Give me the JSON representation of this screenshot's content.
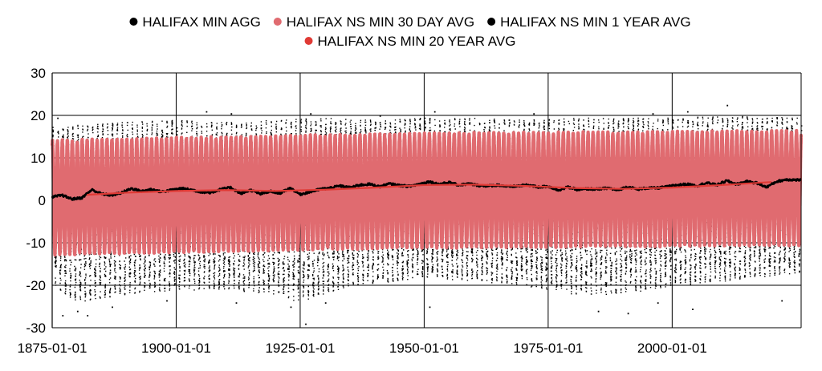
{
  "chart_data": {
    "type": "scatter",
    "title": "",
    "xlabel": "",
    "ylabel": "",
    "x_ticks": [
      "1875-01-01",
      "1900-01-01",
      "1925-01-01",
      "1950-01-01",
      "1975-01-01",
      "2000-01-01"
    ],
    "x_range": [
      "1875-01-01",
      "2025-12-31"
    ],
    "y_ticks": [
      30,
      20,
      10,
      0,
      -10,
      -20,
      -30
    ],
    "ylim": [
      -30,
      30
    ],
    "grid": true,
    "legend_position": "top",
    "series": [
      {
        "name": "HALIFAX MIN AGG",
        "color": "#000000",
        "kind": "daily scatter",
        "upper_envelope": [
          [
            1875,
            17.5
          ],
          [
            1890,
            18.5
          ],
          [
            1900,
            19
          ],
          [
            1910,
            18.5
          ],
          [
            1920,
            19
          ],
          [
            1930,
            19.5
          ],
          [
            1940,
            19
          ],
          [
            1950,
            19.5
          ],
          [
            1960,
            19.5
          ],
          [
            1970,
            19
          ],
          [
            1980,
            19.5
          ],
          [
            1990,
            19.5
          ],
          [
            2000,
            19.5
          ],
          [
            2010,
            20
          ],
          [
            2025,
            19.5
          ]
        ],
        "lower_envelope": [
          [
            1875,
            -20
          ],
          [
            1880,
            -24
          ],
          [
            1890,
            -22
          ],
          [
            1900,
            -21
          ],
          [
            1910,
            -21
          ],
          [
            1920,
            -22
          ],
          [
            1925,
            -24
          ],
          [
            1935,
            -20
          ],
          [
            1945,
            -19
          ],
          [
            1950,
            -18
          ],
          [
            1960,
            -19
          ],
          [
            1970,
            -20
          ],
          [
            1980,
            -22
          ],
          [
            1990,
            -22
          ],
          [
            2000,
            -20
          ],
          [
            2010,
            -19
          ],
          [
            2025,
            -17
          ]
        ],
        "extremes_high": [
          [
            1876,
            19.5
          ],
          [
            1906,
            21
          ],
          [
            1911,
            20.5
          ],
          [
            1927,
            20.5
          ],
          [
            1941,
            20
          ],
          [
            1952,
            21
          ],
          [
            1972,
            20.5
          ],
          [
            1996,
            20.5
          ],
          [
            2003,
            21
          ],
          [
            2011,
            22.5
          ]
        ],
        "extremes_low": [
          [
            1877,
            -27
          ],
          [
            1880,
            -26
          ],
          [
            1882,
            -27
          ],
          [
            1887,
            -25
          ],
          [
            1898,
            -23.5
          ],
          [
            1912,
            -24
          ],
          [
            1923,
            -25
          ],
          [
            1926,
            -29
          ],
          [
            1930,
            -24
          ],
          [
            1951,
            -25
          ],
          [
            1985,
            -26
          ],
          [
            1991,
            -26.5
          ],
          [
            1997,
            -24
          ],
          [
            2004,
            -25.5
          ],
          [
            2022,
            -23.5
          ]
        ]
      },
      {
        "name": "HALIFAX NS  MIN 30 DAY AVG",
        "color": "#E06B70",
        "kind": "seasonal oscillation",
        "summer_peak": 14.5,
        "winter_trough": -11.5
      },
      {
        "name": "HALIFAX NS  MIN 1 YEAR AVG",
        "color": "#000000",
        "x": [
          1875,
          1877,
          1879,
          1881,
          1883,
          1885,
          1887,
          1889,
          1891,
          1893,
          1895,
          1897,
          1899,
          1901,
          1903,
          1905,
          1907,
          1909,
          1911,
          1913,
          1915,
          1917,
          1919,
          1921,
          1923,
          1925,
          1927,
          1929,
          1931,
          1933,
          1935,
          1937,
          1939,
          1941,
          1943,
          1945,
          1947,
          1949,
          1951,
          1953,
          1955,
          1957,
          1959,
          1961,
          1963,
          1965,
          1967,
          1969,
          1971,
          1973,
          1975,
          1977,
          1979,
          1981,
          1983,
          1985,
          1987,
          1989,
          1991,
          1993,
          1995,
          1997,
          1999,
          2001,
          2003,
          2005,
          2007,
          2009,
          2011,
          2013,
          2015,
          2017,
          2019,
          2021,
          2023,
          2025
        ],
        "values": [
          0.8,
          1.2,
          0.3,
          0.6,
          2.5,
          1.5,
          1.2,
          1.8,
          2.8,
          2.1,
          2.6,
          2.0,
          2.4,
          2.8,
          2.5,
          2.0,
          1.8,
          2.6,
          3.0,
          1.6,
          2.4,
          1.5,
          2.1,
          1.7,
          2.9,
          1.4,
          2.0,
          2.6,
          2.9,
          3.4,
          3.0,
          3.6,
          3.8,
          3.2,
          3.9,
          3.5,
          3.3,
          3.8,
          4.4,
          3.8,
          4.2,
          3.6,
          3.9,
          3.5,
          3.4,
          3.6,
          3.2,
          3.4,
          3.6,
          3.1,
          3.3,
          2.4,
          3.1,
          2.5,
          2.7,
          2.6,
          2.9,
          2.4,
          3.2,
          2.6,
          2.9,
          2.9,
          3.2,
          3.6,
          3.8,
          3.4,
          4.1,
          3.6,
          4.6,
          3.8,
          4.4,
          4.1,
          3.1,
          4.4,
          4.9,
          4.8
        ]
      },
      {
        "name": "HALIFAX NS MIN 20 YEAR AVG",
        "color": "#E03A35",
        "x": [
          1882,
          1890,
          1900,
          1910,
          1920,
          1930,
          1940,
          1950,
          1960,
          1970,
          1980,
          1990,
          2000,
          2010,
          2020
        ],
        "values": [
          1.3,
          1.8,
          2.2,
          2.4,
          2.2,
          2.5,
          3.0,
          3.6,
          3.7,
          3.4,
          2.9,
          2.7,
          3.0,
          3.6,
          4.3
        ]
      }
    ]
  }
}
